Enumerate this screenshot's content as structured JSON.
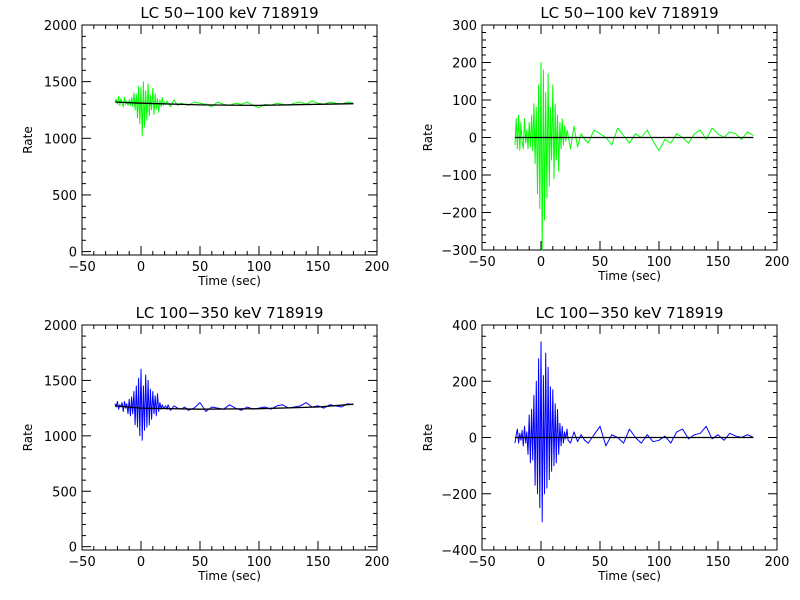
{
  "colors": {
    "background": "#ffffff",
    "axes": "#000000",
    "fit": "#000000",
    "green": "#00ff00",
    "blue": "#0000ff"
  },
  "chart_data": [
    {
      "type": "line",
      "title": "LC 50−100 keV  718919",
      "xlabel": "Time (sec)",
      "ylabel": "Rate",
      "xlim": [
        -50,
        200
      ],
      "ylim": [
        -30,
        2000
      ],
      "xticks": [
        "−50",
        "0",
        "50",
        "100",
        "150",
        "200"
      ],
      "yticks": [
        "0",
        "500",
        "1000",
        "1500",
        "2000"
      ],
      "ytick_values": [
        0,
        500,
        1000,
        1500,
        2000
      ],
      "grid": false,
      "series": [
        {
          "color": "green",
          "x": [
            -22,
            -21,
            -20,
            -19,
            -18,
            -17,
            -16,
            -15,
            -14,
            -13,
            -12,
            -11,
            -10,
            -9,
            -8,
            -7,
            -6,
            -5,
            -4,
            -3,
            -2,
            -1,
            0,
            1,
            2,
            3,
            4,
            5,
            6,
            7,
            8,
            9,
            10,
            11,
            12,
            13,
            14,
            15,
            16,
            17,
            18,
            19,
            20,
            21,
            22,
            23,
            25,
            28,
            31,
            34,
            37,
            40,
            45,
            50,
            55,
            60,
            65,
            70,
            75,
            80,
            85,
            90,
            95,
            100,
            105,
            110,
            115,
            120,
            125,
            130,
            135,
            140,
            145,
            150,
            155,
            160,
            165,
            170,
            175,
            180
          ],
          "y": [
            1330,
            1345,
            1300,
            1370,
            1290,
            1350,
            1310,
            1280,
            1360,
            1300,
            1330,
            1290,
            1340,
            1290,
            1360,
            1280,
            1400,
            1250,
            1390,
            1180,
            1460,
            1130,
            1450,
            1020,
            1500,
            1100,
            1420,
            1160,
            1480,
            1200,
            1380,
            1250,
            1440,
            1210,
            1390,
            1260,
            1350,
            1230,
            1340,
            1280,
            1360,
            1290,
            1320,
            1300,
            1330,
            1310,
            1280,
            1340,
            1290,
            1310,
            1300,
            1290,
            1320,
            1310,
            1300,
            1280,
            1320,
            1300,
            1290,
            1310,
            1300,
            1320,
            1290,
            1270,
            1300,
            1290,
            1310,
            1300,
            1290,
            1310,
            1320,
            1300,
            1330,
            1310,
            1300,
            1320,
            1310,
            1300,
            1320,
            1310
          ]
        },
        {
          "color": "fit",
          "x": [
            -22,
            0,
            50,
            100,
            150,
            180
          ],
          "y": [
            1320,
            1310,
            1295,
            1290,
            1300,
            1305
          ]
        }
      ]
    },
    {
      "type": "line",
      "title": "LC 50−100 keV  718919",
      "xlabel": "Time (sec)",
      "ylabel": "Rate",
      "xlim": [
        -50,
        200
      ],
      "ylim": [
        -300,
        300
      ],
      "xticks": [
        "−50",
        "0",
        "50",
        "100",
        "150",
        "200"
      ],
      "yticks": [
        "−300",
        "−200",
        "−100",
        "0",
        "100",
        "200",
        "300"
      ],
      "ytick_values": [
        -300,
        -200,
        -100,
        0,
        100,
        200,
        300
      ],
      "grid": false,
      "series": [
        {
          "color": "green",
          "x": [
            -22,
            -21,
            -20,
            -19,
            -18,
            -17,
            -16,
            -15,
            -14,
            -13,
            -12,
            -11,
            -10,
            -9,
            -8,
            -7,
            -6,
            -5,
            -4,
            -3,
            -2,
            -1,
            0,
            1,
            2,
            3,
            4,
            5,
            6,
            7,
            8,
            9,
            10,
            11,
            12,
            13,
            14,
            15,
            16,
            17,
            18,
            19,
            20,
            21,
            22,
            23,
            25,
            28,
            31,
            34,
            37,
            40,
            45,
            50,
            55,
            60,
            65,
            70,
            75,
            80,
            85,
            90,
            95,
            100,
            105,
            110,
            115,
            120,
            125,
            130,
            135,
            140,
            145,
            150,
            155,
            160,
            165,
            170,
            175,
            180
          ],
          "y": [
            -20,
            50,
            -30,
            60,
            -35,
            40,
            -10,
            -30,
            50,
            -15,
            20,
            -30,
            40,
            -25,
            60,
            -35,
            90,
            -70,
            80,
            -150,
            140,
            -190,
            200,
            -300,
            180,
            -220,
            120,
            -160,
            170,
            -130,
            80,
            -60,
            140,
            -110,
            90,
            -60,
            60,
            -90,
            40,
            -30,
            50,
            -20,
            30,
            -10,
            20,
            5,
            -30,
            30,
            -25,
            10,
            -5,
            -15,
            20,
            10,
            0,
            -20,
            25,
            5,
            -15,
            10,
            0,
            20,
            -10,
            -35,
            -5,
            -15,
            10,
            0,
            -15,
            10,
            20,
            -5,
            25,
            10,
            0,
            15,
            10,
            -5,
            15,
            5
          ]
        },
        {
          "color": "fit",
          "x": [
            -22,
            180
          ],
          "y": [
            0,
            0
          ]
        }
      ]
    },
    {
      "type": "line",
      "title": "LC 100−350 keV  718919",
      "xlabel": "Time (sec)",
      "ylabel": "Rate",
      "xlim": [
        -50,
        200
      ],
      "ylim": [
        -30,
        2000
      ],
      "xticks": [
        "−50",
        "0",
        "50",
        "100",
        "150",
        "200"
      ],
      "yticks": [
        "0",
        "500",
        "1000",
        "1500",
        "2000"
      ],
      "ytick_values": [
        0,
        500,
        1000,
        1500,
        2000
      ],
      "grid": false,
      "series": [
        {
          "color": "blue",
          "x": [
            -22,
            -21,
            -20,
            -19,
            -18,
            -17,
            -16,
            -15,
            -14,
            -13,
            -12,
            -11,
            -10,
            -9,
            -8,
            -7,
            -6,
            -5,
            -4,
            -3,
            -2,
            -1,
            0,
            1,
            2,
            3,
            4,
            5,
            6,
            7,
            8,
            9,
            10,
            11,
            12,
            13,
            14,
            15,
            16,
            17,
            18,
            19,
            20,
            21,
            22,
            23,
            25,
            28,
            31,
            34,
            37,
            40,
            45,
            50,
            55,
            60,
            65,
            70,
            75,
            80,
            85,
            90,
            95,
            100,
            105,
            110,
            115,
            120,
            125,
            130,
            135,
            140,
            145,
            150,
            155,
            160,
            165,
            170,
            175,
            180
          ],
          "y": [
            1290,
            1260,
            1310,
            1240,
            1280,
            1260,
            1300,
            1220,
            1310,
            1250,
            1290,
            1200,
            1330,
            1180,
            1350,
            1200,
            1400,
            1100,
            1450,
            1080,
            1520,
            1000,
            1600,
            960,
            1450,
            1050,
            1550,
            1080,
            1500,
            1100,
            1420,
            1150,
            1400,
            1200,
            1360,
            1180,
            1380,
            1220,
            1300,
            1240,
            1280,
            1250,
            1260,
            1270,
            1240,
            1280,
            1230,
            1270,
            1250,
            1240,
            1260,
            1230,
            1250,
            1300,
            1220,
            1260,
            1250,
            1240,
            1280,
            1250,
            1230,
            1260,
            1240,
            1250,
            1260,
            1240,
            1270,
            1280,
            1250,
            1260,
            1270,
            1300,
            1260,
            1270,
            1250,
            1280,
            1270,
            1260,
            1290,
            1280
          ]
        },
        {
          "color": "fit",
          "x": [
            -22,
            0,
            50,
            100,
            150,
            180
          ],
          "y": [
            1270,
            1250,
            1240,
            1245,
            1260,
            1285
          ]
        }
      ]
    },
    {
      "type": "line",
      "title": "LC 100−350 keV  718919",
      "xlabel": "Time (sec)",
      "ylabel": "Rate",
      "xlim": [
        -50,
        200
      ],
      "ylim": [
        -400,
        400
      ],
      "xticks": [
        "−50",
        "0",
        "50",
        "100",
        "150",
        "200"
      ],
      "yticks": [
        "−400",
        "−200",
        "0",
        "200",
        "400"
      ],
      "ytick_values": [
        -400,
        -200,
        0,
        200,
        400
      ],
      "grid": false,
      "series": [
        {
          "color": "blue",
          "x": [
            -22,
            -21,
            -20,
            -19,
            -18,
            -17,
            -16,
            -15,
            -14,
            -13,
            -12,
            -11,
            -10,
            -9,
            -8,
            -7,
            -6,
            -5,
            -4,
            -3,
            -2,
            -1,
            0,
            1,
            2,
            3,
            4,
            5,
            6,
            7,
            8,
            9,
            10,
            11,
            12,
            13,
            14,
            15,
            16,
            17,
            18,
            19,
            20,
            21,
            22,
            23,
            25,
            28,
            31,
            34,
            37,
            40,
            45,
            50,
            55,
            60,
            65,
            70,
            75,
            80,
            85,
            90,
            95,
            100,
            105,
            110,
            115,
            120,
            125,
            130,
            135,
            140,
            145,
            150,
            155,
            160,
            165,
            170,
            175,
            180
          ],
          "y": [
            -20,
            10,
            30,
            -20,
            15,
            -10,
            25,
            -30,
            40,
            -20,
            20,
            -60,
            80,
            -90,
            100,
            -80,
            150,
            -170,
            200,
            -200,
            280,
            -250,
            340,
            -300,
            220,
            -200,
            300,
            -180,
            250,
            -150,
            180,
            -120,
            170,
            -100,
            120,
            -90,
            100,
            -60,
            50,
            -30,
            40,
            -20,
            20,
            -5,
            30,
            -10,
            -20,
            20,
            -15,
            10,
            -10,
            -20,
            10,
            40,
            -30,
            10,
            0,
            -20,
            30,
            0,
            -20,
            10,
            -15,
            -10,
            5,
            -20,
            20,
            30,
            -5,
            10,
            15,
            40,
            -5,
            10,
            -10,
            15,
            5,
            0,
            10,
            0
          ]
        },
        {
          "color": "fit",
          "x": [
            -22,
            180
          ],
          "y": [
            0,
            0
          ]
        }
      ]
    }
  ]
}
